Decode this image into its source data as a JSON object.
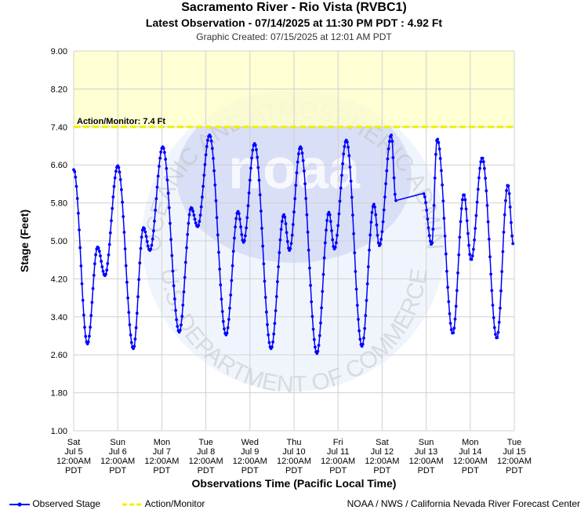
{
  "header": {
    "title": "Sacramento River - Rio Vista (RVBC1)",
    "latest": "Latest Observation - 07/14/2025 at 11:30 PM PDT : 4.92 Ft",
    "created": "Graphic Created: 07/15/2025 at 12:01 AM PDT"
  },
  "legend": {
    "observed": "Observed Stage",
    "action": "Action/Monitor"
  },
  "credit": "NOAA / NWS / California Nevada River Forecast Center",
  "watermark": {
    "text_top": "NATIONAL OCEANIC AND ATMOSPHERIC ADMINISTRATION",
    "text_bottom": "U.S. DEPARTMENT OF COMMERCE",
    "logo": "noaa"
  },
  "colors": {
    "observed": "#0000ff",
    "action_line": "#f0f000",
    "action_fill": "#ffffcc",
    "grid": "#d0d0d0"
  },
  "chart_data": {
    "type": "line",
    "xlabel": "Observations Time (Pacific Local Time)",
    "ylabel": "Stage (Feet)",
    "ylim": [
      1.0,
      9.0
    ],
    "yticks": [
      "1.00",
      "1.80",
      "2.60",
      "3.40",
      "4.20",
      "5.00",
      "5.80",
      "6.60",
      "7.40",
      "8.20",
      "9.00"
    ],
    "xlim": [
      "2025-07-05 00:00",
      "2025-07-15 00:00"
    ],
    "xticks": [
      {
        "day": "Sat",
        "date": "Jul 5",
        "time": "12:00AM",
        "tz": "PDT"
      },
      {
        "day": "Sun",
        "date": "Jul 6",
        "time": "12:00AM",
        "tz": "PDT"
      },
      {
        "day": "Mon",
        "date": "Jul 7",
        "time": "12:00AM",
        "tz": "PDT"
      },
      {
        "day": "Tue",
        "date": "Jul 8",
        "time": "12:00AM",
        "tz": "PDT"
      },
      {
        "day": "Wed",
        "date": "Jul 9",
        "time": "12:00AM",
        "tz": "PDT"
      },
      {
        "day": "Thu",
        "date": "Jul 10",
        "time": "12:00AM",
        "tz": "PDT"
      },
      {
        "day": "Fri",
        "date": "Jul 11",
        "time": "12:00AM",
        "tz": "PDT"
      },
      {
        "day": "Sat",
        "date": "Jul 12",
        "time": "12:00AM",
        "tz": "PDT"
      },
      {
        "day": "Sun",
        "date": "Jul 13",
        "time": "12:00AM",
        "tz": "PDT"
      },
      {
        "day": "Mon",
        "date": "Jul 14",
        "time": "12:00AM",
        "tz": "PDT"
      },
      {
        "day": "Tue",
        "date": "Jul 15",
        "time": "12:00AM",
        "tz": "PDT"
      }
    ],
    "threshold": {
      "name": "Action/Monitor",
      "label": "Action/Monitor: 7.4 Ft",
      "value": 7.4
    },
    "grid": true,
    "legend_position": "bottom-left",
    "series": [
      {
        "name": "Observed Stage",
        "extrema": [
          [
            "2025-07-05 00:00",
            6.5
          ],
          [
            "2025-07-05 07:30",
            2.83
          ],
          [
            "2025-07-05 13:00",
            4.87
          ],
          [
            "2025-07-05 17:00",
            4.27
          ],
          [
            "2025-07-06 00:00",
            6.58
          ],
          [
            "2025-07-06 08:30",
            2.73
          ],
          [
            "2025-07-06 14:00",
            5.28
          ],
          [
            "2025-07-06 17:30",
            4.8
          ],
          [
            "2025-07-07 00:30",
            6.98
          ],
          [
            "2025-07-07 09:30",
            3.08
          ],
          [
            "2025-07-07 16:00",
            5.7
          ],
          [
            "2025-07-07 19:30",
            5.3
          ],
          [
            "2025-07-08 02:00",
            7.23
          ],
          [
            "2025-07-08 11:00",
            3.02
          ],
          [
            "2025-07-08 17:30",
            5.62
          ],
          [
            "2025-07-08 20:30",
            4.97
          ],
          [
            "2025-07-09 02:30",
            7.05
          ],
          [
            "2025-07-09 11:30",
            2.73
          ],
          [
            "2025-07-09 18:30",
            5.55
          ],
          [
            "2025-07-09 21:30",
            4.8
          ],
          [
            "2025-07-10 03:30",
            6.98
          ],
          [
            "2025-07-10 12:30",
            2.63
          ],
          [
            "2025-07-10 19:00",
            5.6
          ],
          [
            "2025-07-10 22:00",
            4.83
          ],
          [
            "2025-07-11 04:30",
            7.12
          ],
          [
            "2025-07-11 13:00",
            2.78
          ],
          [
            "2025-07-11 19:30",
            5.77
          ],
          [
            "2025-07-11 22:30",
            4.9
          ],
          [
            "2025-07-12 05:00",
            7.23
          ],
          [
            "2025-07-12 07:30",
            5.85
          ],
          [
            "2025-07-12 22:30",
            6.0
          ],
          [
            "2025-07-13 03:00",
            4.92
          ],
          [
            "2025-07-13 06:00",
            7.15
          ],
          [
            "2025-07-13 14:30",
            3.05
          ],
          [
            "2025-07-13 20:30",
            5.98
          ],
          [
            "2025-07-14 00:30",
            4.6
          ],
          [
            "2025-07-14 06:30",
            6.75
          ],
          [
            "2025-07-14 14:30",
            2.95
          ],
          [
            "2025-07-14 20:30",
            6.18
          ],
          [
            "2025-07-14 23:30",
            4.92
          ]
        ]
      }
    ]
  }
}
